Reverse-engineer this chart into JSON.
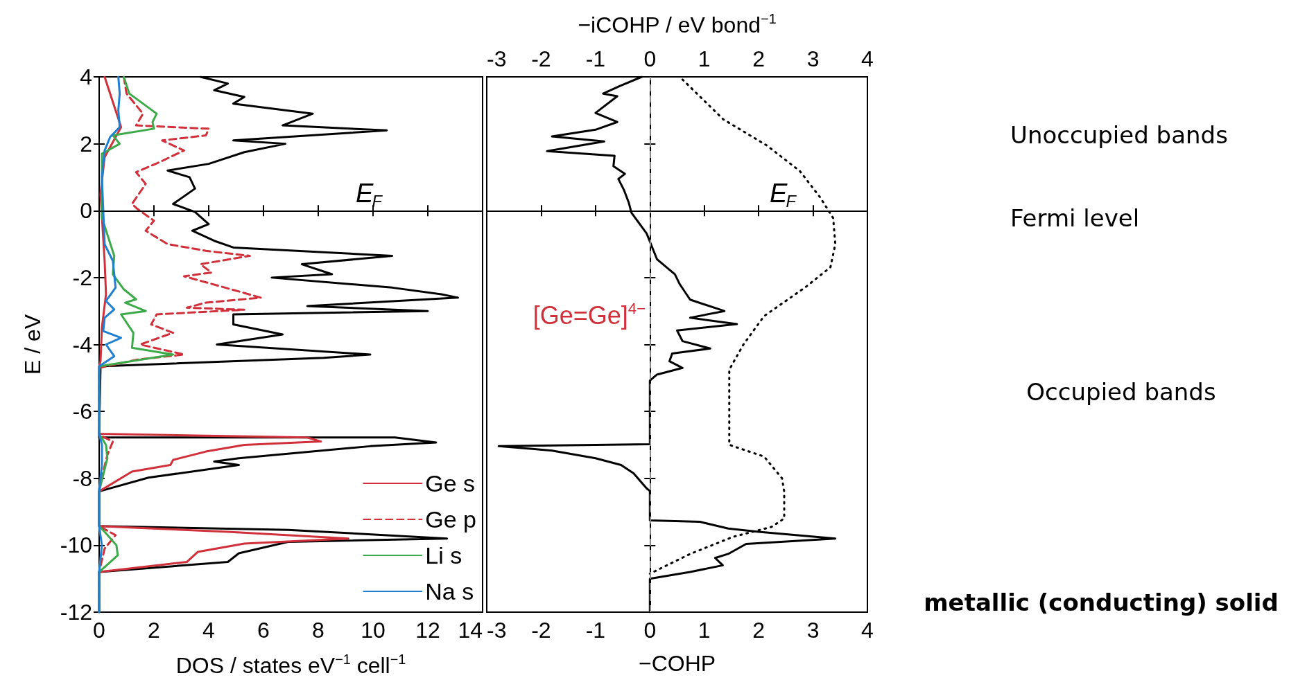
{
  "chart_data": [
    {
      "type": "line",
      "xlabel": "DOS / states eV$^{−1}$ cell$^{−1}$",
      "ylabel": "E / eV",
      "xlim": [
        0,
        14
      ],
      "xticks": [
        0,
        2,
        4,
        6,
        8,
        10,
        12,
        14
      ],
      "ylim": [
        -12,
        4
      ],
      "yticks": [
        -12,
        -10,
        -8,
        -6,
        -4,
        -2,
        0,
        2,
        4
      ],
      "legend": "bottom right",
      "ref_lines": [
        {
          "axis": "y",
          "value": 0,
          "label": "E$_{F}$",
          "color": "#000000"
        }
      ],
      "series": [
        {
          "color": "#000000",
          "x": [
            3.7,
            4.7,
            4.2,
            5.3,
            4.9,
            7.8,
            6.7,
            10.5,
            4.9,
            6.8,
            5.3,
            4.0,
            2.5,
            3.3,
            3.5,
            2.7,
            3.5,
            4.0,
            3.4,
            4.2,
            4.9,
            10.7,
            7.4,
            8.5,
            6.3,
            10.7,
            12.5,
            13.1,
            7.6,
            12.0,
            4.9,
            4.9,
            6.7,
            4.3,
            9.9,
            8.2,
            0.05,
            0,
            0,
            10.8,
            12.3,
            9.9,
            5.1,
            4.2,
            5.1,
            1.8,
            0,
            0,
            6.9,
            12.7,
            6.9,
            5.1,
            4.7,
            0,
            0
          ],
          "values": [
            4,
            3.8,
            3.6,
            3.4,
            3.2,
            2.9,
            2.55,
            2.4,
            2.1,
            2.0,
            1.75,
            1.4,
            1.2,
            1.0,
            0.66,
            0.2,
            -0.04,
            -0.4,
            -0.6,
            -0.9,
            -1.1,
            -1.35,
            -1.6,
            -1.9,
            -2.0,
            -2.3,
            -2.5,
            -2.6,
            -2.85,
            -3.0,
            -3.1,
            -3.4,
            -3.7,
            -4.0,
            -4.3,
            -4.4,
            -4.65,
            -6.67,
            -6.78,
            -6.78,
            -6.93,
            -7.04,
            -7.4,
            -7.5,
            -7.6,
            -7.98,
            -8.39,
            -9.43,
            -9.54,
            -9.8,
            -9.9,
            -10.24,
            -10.5,
            -10.8,
            -12
          ]
        },
        {
          "name": "Ge s",
          "color": "#d0303a",
          "x": [
            0.2,
            0.6,
            0.8,
            0.2,
            0.05,
            0.2,
            0.25,
            0.1,
            0.05,
            0,
            0,
            7.6,
            8.1,
            5.3,
            3.9,
            2.7,
            2.6,
            1.2,
            0,
            0,
            4.7,
            9.1,
            5.3,
            3.6,
            3.2,
            0,
            0
          ],
          "values": [
            4,
            3,
            2.5,
            1.6,
            0.5,
            -1.5,
            -2.5,
            -3.5,
            -4.5,
            -4.65,
            -6.67,
            -6.78,
            -6.9,
            -7.0,
            -7.2,
            -7.45,
            -7.6,
            -7.8,
            -8.39,
            -9.43,
            -9.6,
            -9.8,
            -9.95,
            -10.2,
            -10.5,
            -10.8,
            -12
          ]
        },
        {
          "name": "Ge p",
          "color": "#d0303a",
          "line_style": "dashed",
          "x": [
            0.9,
            1.0,
            1.6,
            1.35,
            4.0,
            3.9,
            2.3,
            3.1,
            2.2,
            1.35,
            1.7,
            1.2,
            1.4,
            2.0,
            1.7,
            2.5,
            3.9,
            5.5,
            3.7,
            4.1,
            3.1,
            4.6,
            5.9,
            3.9,
            3.2,
            5.3,
            2.1,
            1.9,
            2.7,
            1.5,
            3.1,
            1.4,
            0,
            0,
            0.5,
            0.3,
            0,
            0,
            0.6,
            0.2,
            0,
            0
          ],
          "values": [
            4,
            3.5,
            2.9,
            2.55,
            2.45,
            2.25,
            2.1,
            1.8,
            1.45,
            1.15,
            0.8,
            0.2,
            0.05,
            -0.3,
            -0.6,
            -1.0,
            -1.2,
            -1.35,
            -1.6,
            -1.85,
            -1.96,
            -2.3,
            -2.6,
            -2.75,
            -2.9,
            -2.96,
            -3.1,
            -3.4,
            -3.65,
            -4.0,
            -4.3,
            -4.45,
            -4.7,
            -6.7,
            -6.9,
            -7.3,
            -8.3,
            -9.43,
            -9.7,
            -10.1,
            -10.8,
            -12
          ]
        },
        {
          "name": "Li s",
          "color": "#3daa4a",
          "x": [
            0.9,
            1.1,
            2.1,
            1.95,
            2.0,
            0.5,
            0.75,
            0.1,
            0.1,
            0.55,
            0.5,
            0.9,
            1.35,
            0.95,
            1.7,
            0.8,
            1.25,
            1.2,
            2.7,
            0,
            0,
            0.25,
            0.3,
            0,
            0,
            0.2,
            0.63,
            0.68,
            0,
            0
          ],
          "values": [
            4,
            3.5,
            2.9,
            2.65,
            2.45,
            2.25,
            2.0,
            1.7,
            -0.2,
            -1.35,
            -1.9,
            -2.35,
            -2.65,
            -2.75,
            -3.0,
            -3.1,
            -3.65,
            -4.1,
            -4.3,
            -4.65,
            -6.67,
            -7.0,
            -7.4,
            -8.39,
            -9.43,
            -9.6,
            -10.0,
            -10.3,
            -10.8,
            -12
          ]
        },
        {
          "name": "Na s",
          "color": "#1f7fd0",
          "x": [
            0.7,
            0.75,
            0.7,
            0.75,
            0.4,
            0.2,
            0.1,
            0.15,
            0.2,
            0.5,
            0.6,
            0.25,
            0.55,
            0.2,
            0.15,
            0.8,
            0.25,
            0.55,
            0,
            0,
            0.1,
            0.1,
            0,
            0,
            0.1,
            0,
            0
          ],
          "values": [
            4,
            3.5,
            3.0,
            2.5,
            2.2,
            1.8,
            1.0,
            0,
            -1.0,
            -1.5,
            -2.3,
            -2.7,
            -2.95,
            -3.2,
            -3.6,
            -3.8,
            -4.0,
            -4.35,
            -4.65,
            -6.67,
            -7.0,
            -7.6,
            -8.39,
            -9.43,
            -10.0,
            -10.8,
            -12
          ]
        }
      ]
    },
    {
      "type": "line",
      "xlabel": "−COHP",
      "x2label": "−iCOHP / eV bond$^{−1}$",
      "xlim": [
        -3,
        4
      ],
      "xticks": [
        -3,
        -2,
        -1,
        0,
        1,
        2,
        3,
        4
      ],
      "x2lim": [
        -3,
        4
      ],
      "x2ticks": [
        -3,
        -2,
        -1,
        0,
        1,
        2,
        3,
        4
      ],
      "ylim": [
        -12,
        4
      ],
      "yticks": [
        -12,
        -10,
        -8,
        -6,
        -4,
        -2,
        0,
        2,
        4
      ],
      "tick_labels": "x",
      "ref_lines": [
        {
          "axis": "x",
          "value": 0,
          "color": "#888888",
          "line_style": "dashed"
        },
        {
          "axis": "y",
          "value": 0,
          "label": "E$_{F}$",
          "color": "#000000"
        }
      ],
      "annotations": [
        "[Ge=Ge]$^{4−}$",
        "Unoccupied bands",
        "Fermi level",
        "Occupied bands",
        "metallic (conducting) solid"
      ],
      "series": [
        {
          "color": "#000000",
          "x": [
            -0.15,
            -0.55,
            -0.86,
            -0.6,
            -1.0,
            -0.6,
            -1.0,
            -1.8,
            -0.84,
            -1.89,
            -0.65,
            -0.67,
            -0.46,
            -0.58,
            -0.48,
            -0.39,
            -0.34,
            -0.06,
            0.13,
            0.46,
            0.55,
            0.74,
            1.37,
            0.74,
            1.6,
            0.5,
            0.6,
            1.11,
            0.41,
            0.36,
            0.6,
            0.13,
            0,
            0,
            -2.78,
            -1.8,
            -1.0,
            -0.53,
            -0.3,
            -0.06,
            0,
            0,
            0.92,
            1.44,
            2.0,
            3.41,
            1.77,
            1.44,
            1.2,
            1.34,
            0.74,
            0,
            0
          ],
          "values": [
            4,
            3.73,
            3.5,
            3.42,
            2.92,
            2.65,
            2.42,
            2.22,
            2.07,
            1.78,
            1.64,
            1.33,
            1.1,
            0.95,
            0.63,
            0.25,
            -0.06,
            -0.68,
            -1.45,
            -1.9,
            -2.2,
            -2.66,
            -3.0,
            -3.2,
            -3.39,
            -3.58,
            -3.9,
            -4.12,
            -4.27,
            -4.5,
            -4.7,
            -4.9,
            -5.08,
            -6.98,
            -7.04,
            -7.17,
            -7.4,
            -7.6,
            -7.85,
            -8.3,
            -8.38,
            -9.26,
            -9.3,
            -9.5,
            -9.6,
            -9.8,
            -9.96,
            -10.26,
            -10.38,
            -10.6,
            -10.8,
            -11.0,
            -12
          ]
        },
        {
          "color": "#000000",
          "axis": "x2",
          "line_style": "dotted",
          "x": [
            0.6,
            1.35,
            2.15,
            2.76,
            3.13,
            3.37,
            3.41,
            3.32,
            2.85,
            2.1,
            1.72,
            1.46,
            1.46,
            1.46,
            2.1,
            2.43,
            2.47,
            2.47,
            2.24,
            1.53,
            0.74,
            0
          ],
          "values": [
            3.92,
            2.73,
            1.95,
            1.18,
            0.4,
            -0.22,
            -1.0,
            -1.69,
            -2.3,
            -3.15,
            -4.0,
            -4.75,
            -4.95,
            -7.0,
            -7.35,
            -8.0,
            -8.4,
            -9.2,
            -9.45,
            -9.75,
            -10.26,
            -10.85
          ]
        }
      ]
    }
  ]
}
